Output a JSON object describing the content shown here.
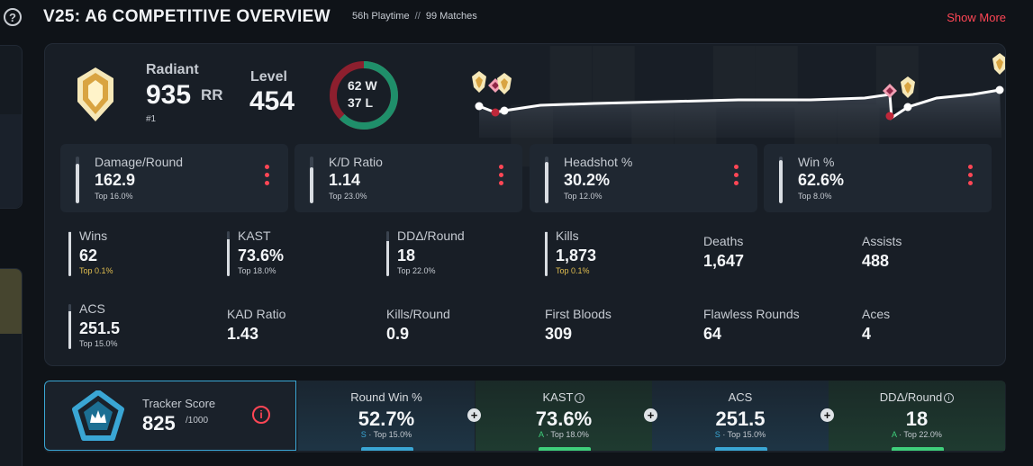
{
  "header": {
    "title": "V25: A6 COMPETITIVE OVERVIEW",
    "playtime": "56h Playtime",
    "separator": "//",
    "matches": "99 Matches",
    "show_more": "Show More"
  },
  "rank": {
    "name": "Radiant",
    "rr": "935",
    "rr_unit": "RR",
    "position": "#1",
    "level_label": "Level",
    "level": "454"
  },
  "record": {
    "wins": "62 W",
    "losses": "37 L",
    "win_count": 62,
    "loss_count": 37
  },
  "colors": {
    "accent_red": "#ff4655",
    "win_green": "#1f8f6a",
    "loss_red": "#8d1f2e",
    "tracker_blue": "#3aa6d4",
    "grade_green": "#3fcf7b",
    "top_gold": "#e1be4f"
  },
  "stat_boxes": [
    {
      "label": "Damage/Round",
      "value": "162.9",
      "top": "Top 16.0%",
      "fill": 0.84
    },
    {
      "label": "K/D Ratio",
      "value": "1.14",
      "top": "Top 23.0%",
      "fill": 0.77
    },
    {
      "label": "Headshot %",
      "value": "30.2%",
      "top": "Top 12.0%",
      "fill": 0.88
    },
    {
      "label": "Win %",
      "value": "62.6%",
      "top": "Top 8.0%",
      "fill": 0.92
    }
  ],
  "grid_stats": [
    {
      "label": "Wins",
      "value": "62",
      "top": "Top 0.1%",
      "gold": true,
      "fill": 0.99
    },
    {
      "label": "KAST",
      "value": "73.6%",
      "top": "Top 18.0%",
      "gold": false,
      "fill": 0.82
    },
    {
      "label": "DDΔ/Round",
      "value": "18",
      "top": "Top 22.0%",
      "gold": false,
      "fill": 0.78
    },
    {
      "label": "Kills",
      "value": "1,873",
      "top": "Top 0.1%",
      "gold": true,
      "fill": 0.99
    },
    {
      "label": "Deaths",
      "value": "1,647"
    },
    {
      "label": "Assists",
      "value": "488"
    },
    {
      "label": "ACS",
      "value": "251.5",
      "top": "Top 15.0%",
      "gold": false,
      "fill": 0.85
    },
    {
      "label": "KAD Ratio",
      "value": "1.43"
    },
    {
      "label": "Kills/Round",
      "value": "0.9"
    },
    {
      "label": "First Bloods",
      "value": "309"
    },
    {
      "label": "Flawless Rounds",
      "value": "64"
    },
    {
      "label": "Aces",
      "value": "4"
    }
  ],
  "tracker": {
    "label": "Tracker Score",
    "score": "825",
    "max": "/1000",
    "cells": [
      {
        "label": "Round Win %",
        "value": "52.7%",
        "grade": "S",
        "top": " · Top 15.0%",
        "info": false
      },
      {
        "label": "KAST",
        "value": "73.6%",
        "grade": "A",
        "top": " · Top 18.0%",
        "info": true
      },
      {
        "label": "ACS",
        "value": "251.5",
        "grade": "S",
        "top": " · Top 15.0%",
        "info": false
      },
      {
        "label": "DDΔ/Round",
        "value": "18",
        "grade": "A",
        "top": " · Top 22.0%",
        "info": true
      }
    ]
  },
  "icons": {
    "help": "?",
    "info": "i",
    "plus": "+"
  }
}
